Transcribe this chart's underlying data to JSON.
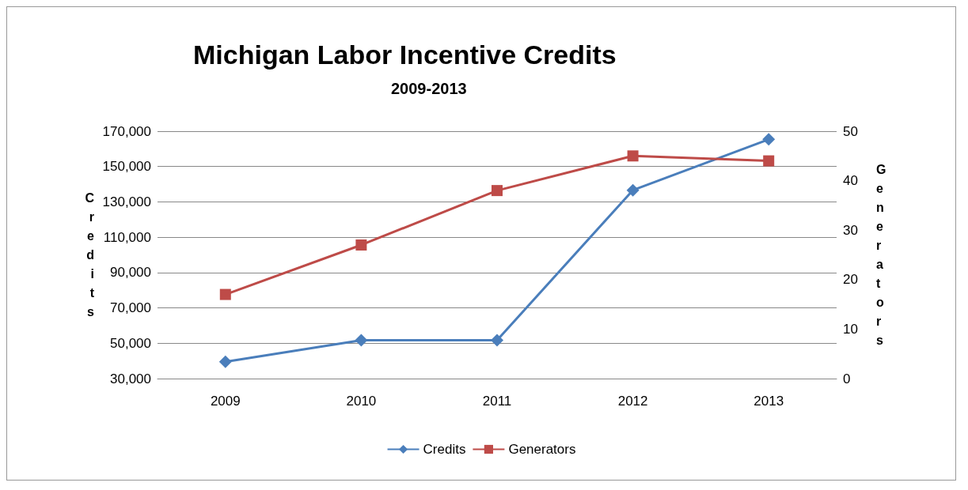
{
  "chart_data": {
    "type": "line",
    "title": "Michigan Labor Incentive Credits",
    "subtitle": "2009-2013",
    "ylabel": "Credits",
    "y2label": "Generators",
    "categories": [
      "2009",
      "2010",
      "2011",
      "2012",
      "2013"
    ],
    "series": [
      {
        "name": "Credits",
        "color": "#4a7ebb",
        "marker": "diamond",
        "values": [
          39500,
          51700,
          51700,
          136600,
          165400
        ]
      },
      {
        "name": "Generators",
        "color": "#be4b48",
        "marker": "square",
        "axis": "y2",
        "values": [
          17,
          27,
          38,
          45,
          44
        ]
      }
    ],
    "ylim": [
      30000,
      170000
    ],
    "yticks": [
      {
        "value": 30000,
        "label": "30,000"
      },
      {
        "value": 50000,
        "label": "50,000"
      },
      {
        "value": 70000,
        "label": "70,000"
      },
      {
        "value": 90000,
        "label": "90,000"
      },
      {
        "value": 110000,
        "label": "110,000"
      },
      {
        "value": 130000,
        "label": "130,000"
      },
      {
        "value": 150000,
        "label": "150,000"
      },
      {
        "value": 170000,
        "label": "170,000"
      }
    ],
    "y2lim": [
      0,
      50
    ],
    "y2ticks": [
      0,
      10,
      20,
      30,
      40,
      50
    ],
    "grid": "y",
    "legend": "bottom"
  }
}
